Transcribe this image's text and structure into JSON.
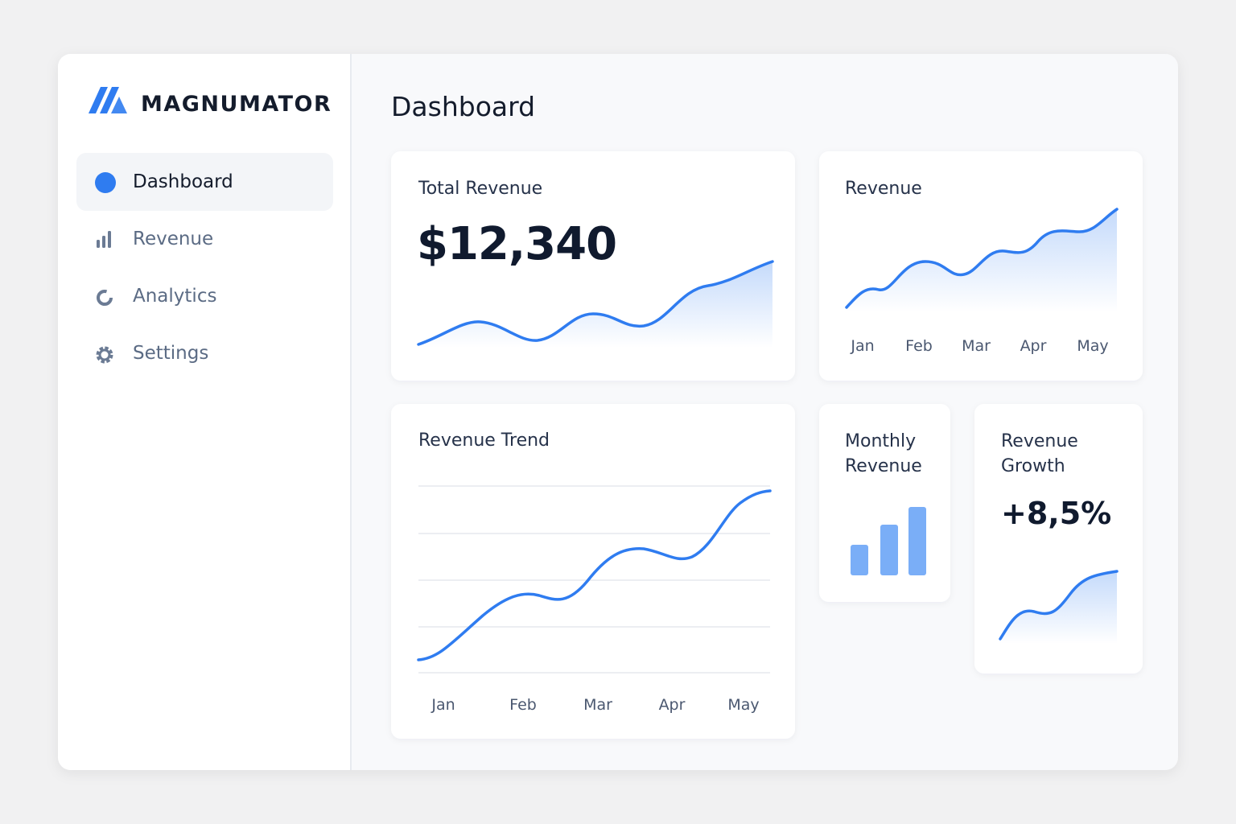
{
  "sidebar": {
    "brand": "MAGNUMATOR",
    "nav": [
      "Dashboard",
      "Revenue",
      "Analytics",
      "Settings"
    ]
  },
  "main": {
    "heading": "Dashboard",
    "cards": {
      "total_revenue": {
        "title": "Total Revenue",
        "value": "$12,340"
      },
      "revenue": {
        "title": "Revenue",
        "months": [
          "Jan",
          "Feb",
          "Mar",
          "Apr",
          "May"
        ]
      },
      "revenue_trend": {
        "title": "Revenue Trend",
        "months": [
          "Jan",
          "Feb",
          "Mar",
          "Apr",
          "May"
        ]
      },
      "monthly_revenue": {
        "title": "Monthly Revenue"
      },
      "revenue_growth": {
        "title": "Revenue Growth",
        "value": "+8,5%"
      }
    }
  }
}
